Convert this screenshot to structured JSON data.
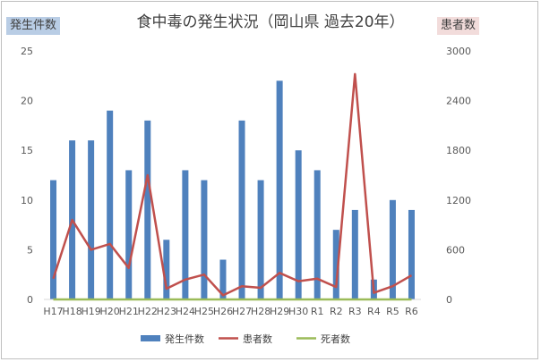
{
  "chart_data": {
    "type": "bar",
    "title": "食中毒の発生状況（岡山県 過去20年）",
    "ylabel_left": "発生件数",
    "ylabel_right": "患者数",
    "categories": [
      "H17",
      "H18",
      "H19",
      "H20",
      "H21",
      "H22",
      "H23",
      "H24",
      "H25",
      "H26",
      "H27",
      "H28",
      "H29",
      "H30",
      "R1",
      "R2",
      "R3",
      "R4",
      "R5",
      "R6"
    ],
    "ylim_left": [
      0,
      25
    ],
    "yticks_left": [
      0,
      5,
      10,
      15,
      20,
      25
    ],
    "ylim_right": [
      0,
      3000
    ],
    "yticks_right": [
      0,
      600,
      1200,
      1800,
      2400,
      3000
    ],
    "series": [
      {
        "name": "発生件数",
        "type": "bar",
        "axis": "left",
        "color": "#4f81bd",
        "values": [
          12,
          16,
          16,
          19,
          13,
          18,
          6,
          13,
          12,
          4,
          18,
          12,
          22,
          15,
          13,
          7,
          9,
          2,
          10,
          9
        ]
      },
      {
        "name": "患者数",
        "type": "line",
        "axis": "right",
        "color": "#c0504d",
        "values": [
          250,
          960,
          600,
          670,
          380,
          1500,
          130,
          240,
          300,
          50,
          160,
          140,
          320,
          220,
          250,
          150,
          2720,
          80,
          160,
          290
        ]
      },
      {
        "name": "死者数",
        "type": "line",
        "axis": "right",
        "color": "#9bbb59",
        "values": [
          0,
          0,
          0,
          0,
          0,
          0,
          0,
          0,
          0,
          0,
          0,
          0,
          0,
          0,
          0,
          0,
          0,
          0,
          0,
          0
        ]
      }
    ],
    "grid": false,
    "legend": "bottom"
  }
}
